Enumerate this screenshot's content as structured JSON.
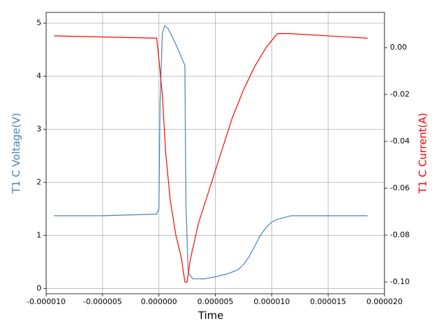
{
  "chart_data": {
    "type": "line",
    "x_label": "Time",
    "y_label": "T1 C Voltage(V)",
    "y2_label": "T1 C Current(A)",
    "xlim": [
      -1e-05,
      2e-05
    ],
    "ylim": [
      -0.1,
      5.2
    ],
    "y2lim": [
      -0.105,
      0.015
    ],
    "xticks": [
      {
        "value": -1e-05,
        "label": "-0.000010"
      },
      {
        "value": -5e-06,
        "label": "-0.000005"
      },
      {
        "value": 0,
        "label": "0.000000"
      },
      {
        "value": 5e-06,
        "label": "0.000005"
      },
      {
        "value": 1e-05,
        "label": "0.000010"
      },
      {
        "value": 1.5e-05,
        "label": "0.000015"
      },
      {
        "value": 2e-05,
        "label": "0.000020"
      }
    ],
    "yticks": [
      0,
      1,
      2,
      3,
      4,
      5
    ],
    "y2ticks": [
      {
        "value": 0,
        "label": "0.00"
      },
      {
        "value": -0.02,
        "label": "-0.02"
      },
      {
        "value": -0.04,
        "label": "-0.04"
      },
      {
        "value": -0.06,
        "label": "-0.06"
      },
      {
        "value": -0.08,
        "label": "-0.08"
      },
      {
        "value": -0.1,
        "label": "-0.10"
      }
    ],
    "grid": true,
    "series": [
      {
        "name": "T1 C Voltage(V)",
        "color": "#4682b4",
        "x": [
          -9.3e-06,
          -5e-06,
          -2e-07,
          0,
          1e-07,
          3e-07,
          5e-07,
          8e-07,
          1.5e-06,
          2.3e-06,
          2.4e-06,
          2.6e-06,
          3e-06,
          4e-06,
          5e-06,
          6e-06,
          7e-06,
          7.5e-06,
          8e-06,
          8.5e-06,
          9e-06,
          9.5e-06,
          1e-05,
          1.05e-05,
          1.1e-05,
          1.17e-05,
          1.85e-05
        ],
        "values": [
          1.37,
          1.37,
          1.4,
          1.5,
          3.5,
          4.8,
          4.95,
          4.9,
          4.6,
          4.2,
          1.5,
          0.3,
          0.18,
          0.18,
          0.22,
          0.27,
          0.35,
          0.45,
          0.6,
          0.8,
          1.0,
          1.15,
          1.25,
          1.3,
          1.33,
          1.37,
          1.37
        ]
      },
      {
        "name": "T1 C Current(A)",
        "color": "#ff0000",
        "axis": "y2",
        "x": [
          -9.3e-06,
          -2e-07,
          0,
          3e-07,
          6e-07,
          1e-06,
          1.5e-06,
          2e-06,
          2.3e-06,
          2.5e-06,
          2.8e-06,
          3.5e-06,
          4.5e-06,
          5.5e-06,
          6.5e-06,
          7.5e-06,
          8.5e-06,
          9.5e-06,
          1.05e-05,
          1.15e-05,
          1.85e-05
        ],
        "values": [
          0.005,
          0.004,
          -0.005,
          -0.02,
          -0.045,
          -0.065,
          -0.08,
          -0.09,
          -0.1,
          -0.1,
          -0.09,
          -0.075,
          -0.06,
          -0.045,
          -0.03,
          -0.018,
          -0.008,
          0.0,
          0.006,
          0.006,
          0.004
        ]
      }
    ]
  }
}
